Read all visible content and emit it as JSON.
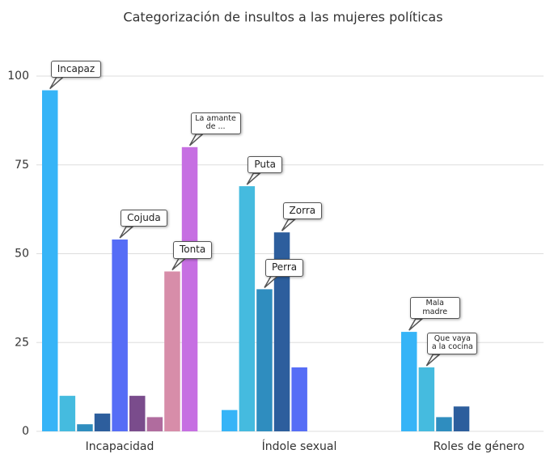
{
  "chart_data": {
    "type": "bar",
    "title": "Categorización de insultos a las  mujeres políticas",
    "categories": [
      "Incapacidad",
      "Índole sexual",
      "Roles de género"
    ],
    "series": [
      {
        "color": "#36b4f7",
        "values": [
          96,
          6,
          28
        ]
      },
      {
        "color": "#45bbdf",
        "values": [
          10,
          69,
          18
        ]
      },
      {
        "color": "#2f8dbf",
        "values": [
          2,
          40,
          4
        ]
      },
      {
        "color": "#2d5e9d",
        "values": [
          5,
          56,
          7
        ]
      },
      {
        "color": "#566df6",
        "values": [
          54,
          18,
          null
        ]
      },
      {
        "color": "#7a4c8c",
        "values": [
          10,
          null,
          null
        ]
      },
      {
        "color": "#b06c9e",
        "values": [
          4,
          null,
          null
        ]
      },
      {
        "color": "#d78da9",
        "values": [
          45,
          null,
          null
        ]
      },
      {
        "color": "#c66fe2",
        "values": [
          80,
          null,
          null
        ]
      }
    ],
    "annotations": [
      {
        "text": "Incapaz",
        "series": 0,
        "category": 0
      },
      {
        "text": "Cojuda",
        "series": 4,
        "category": 0
      },
      {
        "text": "Tonta",
        "series": 7,
        "category": 0
      },
      {
        "text": "La amante de ...",
        "series": 8,
        "category": 0
      },
      {
        "text": "Puta",
        "series": 1,
        "category": 1
      },
      {
        "text": "Perra",
        "series": 2,
        "category": 1
      },
      {
        "text": "Zorra",
        "series": 3,
        "category": 1
      },
      {
        "text": "Mala madre",
        "series": 0,
        "category": 2
      },
      {
        "text": "Que vaya a la cocina",
        "series": 1,
        "category": 2
      }
    ],
    "ylim": [
      0,
      100
    ],
    "yticks": [
      0,
      25,
      50,
      75,
      100
    ],
    "grid": true
  }
}
